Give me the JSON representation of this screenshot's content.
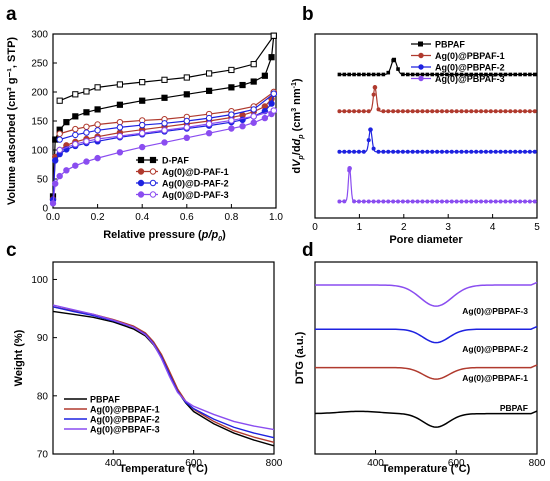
{
  "chart_data": [
    {
      "panel": "a",
      "type": "line",
      "xlabel_main": "Relative pressure (",
      "xlabel_var": "p/p",
      "xlabel_sub": "0",
      "xlabel_end": ")",
      "ylabel": "Volume adsorbed (cm³ g⁻¹, STP)",
      "xlim": [
        0.0,
        1.0
      ],
      "ylim": [
        0,
        300
      ],
      "xticks": [
        "0.0",
        "0.2",
        "0.4",
        "0.6",
        "0.8",
        "1.0"
      ],
      "yticks": [
        "0",
        "50",
        "100",
        "150",
        "200",
        "250",
        "300"
      ],
      "legend_position": "center-right",
      "series": [
        {
          "name": "D-PAF",
          "color": "#000000",
          "x": [
            0.0,
            0.01,
            0.03,
            0.06,
            0.1,
            0.15,
            0.2,
            0.3,
            0.4,
            0.5,
            0.6,
            0.7,
            0.8,
            0.85,
            0.9,
            0.95,
            0.98,
            0.99
          ],
          "ads": [
            20,
            118,
            135,
            148,
            158,
            165,
            170,
            178,
            185,
            190,
            196,
            202,
            208,
            212,
            218,
            228,
            260,
            297
          ],
          "des": [
            185,
            196,
            201,
            208,
            213,
            217,
            221,
            225,
            232,
            238,
            248,
            297
          ],
          "des_x": [
            0.03,
            0.1,
            0.15,
            0.2,
            0.3,
            0.4,
            0.5,
            0.6,
            0.7,
            0.8,
            0.9,
            0.99
          ]
        },
        {
          "name": "Ag(0)@D-PAF-1",
          "color": "#b03a2e",
          "x": [
            0.0,
            0.01,
            0.03,
            0.06,
            0.1,
            0.15,
            0.2,
            0.3,
            0.4,
            0.5,
            0.6,
            0.7,
            0.8,
            0.85,
            0.9,
            0.95,
            0.98,
            0.99
          ],
          "ads": [
            15,
            88,
            100,
            108,
            114,
            119,
            123,
            130,
            135,
            140,
            145,
            150,
            156,
            160,
            166,
            175,
            188,
            200
          ],
          "des": [
            128,
            136,
            140,
            144,
            148,
            151,
            153,
            157,
            162,
            167,
            175,
            200
          ],
          "des_x": [
            0.03,
            0.1,
            0.15,
            0.2,
            0.3,
            0.4,
            0.5,
            0.6,
            0.7,
            0.8,
            0.9,
            0.99
          ]
        },
        {
          "name": "Ag(0)@D-PAF-2",
          "color": "#1e22e0",
          "x": [
            0.0,
            0.01,
            0.03,
            0.06,
            0.1,
            0.15,
            0.2,
            0.3,
            0.4,
            0.5,
            0.6,
            0.7,
            0.8,
            0.85,
            0.9,
            0.95,
            0.98,
            0.99
          ],
          "ads": [
            14,
            82,
            93,
            101,
            107,
            112,
            115,
            122,
            127,
            132,
            137,
            142,
            148,
            152,
            158,
            167,
            180,
            197
          ],
          "des": [
            118,
            126,
            130,
            134,
            139,
            143,
            146,
            150,
            155,
            161,
            170,
            197
          ],
          "des_x": [
            0.03,
            0.1,
            0.15,
            0.2,
            0.3,
            0.4,
            0.5,
            0.6,
            0.7,
            0.8,
            0.9,
            0.99
          ]
        },
        {
          "name": "Ag(0)@D-PAF-3",
          "color": "#8a4df0",
          "x": [
            0.0,
            0.01,
            0.03,
            0.06,
            0.1,
            0.15,
            0.2,
            0.3,
            0.4,
            0.5,
            0.6,
            0.7,
            0.8,
            0.85,
            0.9,
            0.95,
            0.98,
            0.99
          ],
          "ads": [
            8,
            42,
            55,
            65,
            73,
            80,
            86,
            96,
            105,
            113,
            121,
            129,
            137,
            141,
            147,
            155,
            162,
            168
          ],
          "des": [
            100,
            110,
            115,
            119,
            124,
            129,
            134,
            139,
            145,
            151,
            158,
            168
          ],
          "des_x": [
            0.03,
            0.1,
            0.15,
            0.2,
            0.3,
            0.4,
            0.5,
            0.6,
            0.7,
            0.8,
            0.9,
            0.99
          ]
        }
      ]
    },
    {
      "panel": "b",
      "type": "line",
      "xlabel": "Pore diameter",
      "ylabel_parts": [
        "d",
        "V",
        "p",
        "/d",
        "d",
        "p",
        " (cm",
        "3",
        " nm",
        "-1",
        ")"
      ],
      "xlim": [
        0,
        5
      ],
      "xticks": [
        "0",
        "1",
        "2",
        "3",
        "4",
        "5"
      ],
      "legend_position": "top-right",
      "series": [
        {
          "name": "PBPAF",
          "color": "#000000",
          "baseline": 0.78,
          "peak_x": 1.78,
          "peak_h": 0.08,
          "peak_w": 0.09
        },
        {
          "name": "Ag(0)@PBPAF-1",
          "color": "#b03a2e",
          "baseline": 0.58,
          "peak_x": 1.35,
          "peak_h": 0.13,
          "peak_w": 0.05
        },
        {
          "name": "Ag(0)@PBPAF-2",
          "color": "#1e22e0",
          "baseline": 0.36,
          "peak_x": 1.25,
          "peak_h": 0.12,
          "peak_w": 0.05
        },
        {
          "name": "Ag(0)@PBPAF-3",
          "color": "#8a4df0",
          "baseline": 0.09,
          "peak_x": 0.78,
          "peak_h": 0.18,
          "peak_w": 0.04
        }
      ]
    },
    {
      "panel": "c",
      "type": "line",
      "xlabel": "Temperature (°C)",
      "ylabel": "Weight (%)",
      "xlim": [
        250,
        800
      ],
      "ylim": [
        70,
        103
      ],
      "xticks": [
        "400",
        "600",
        "800"
      ],
      "yticks": [
        "70",
        "80",
        "90",
        "100"
      ],
      "legend_position": "bottom-left",
      "x": [
        250,
        300,
        350,
        400,
        450,
        480,
        500,
        520,
        540,
        560,
        580,
        600,
        650,
        700,
        750,
        800
      ],
      "series": [
        {
          "name": "PBPAF",
          "color": "#000000",
          "values": [
            94.5,
            94.0,
            93.5,
            92.7,
            91.5,
            90.3,
            88.8,
            86.6,
            83.8,
            80.8,
            78.8,
            77.3,
            75.2,
            73.6,
            72.4,
            71.4
          ]
        },
        {
          "name": "Ag(0)@PBPAF-1",
          "color": "#b03a2e",
          "values": [
            95.3,
            94.6,
            94.0,
            93.1,
            92.0,
            90.8,
            89.3,
            87.1,
            84.2,
            81.2,
            79.1,
            77.7,
            75.6,
            74.0,
            72.9,
            72.0
          ]
        },
        {
          "name": "Ag(0)@PBPAF-2",
          "color": "#1e22e0",
          "values": [
            95.3,
            94.5,
            93.8,
            92.9,
            91.8,
            90.6,
            89.0,
            86.7,
            83.7,
            80.8,
            78.9,
            77.8,
            76.0,
            74.6,
            73.6,
            72.8
          ]
        },
        {
          "name": "Ag(0)@PBPAF-3",
          "color": "#8a4df0",
          "values": [
            95.6,
            94.8,
            94.0,
            93.0,
            91.8,
            90.5,
            88.9,
            86.4,
            83.3,
            80.6,
            79.1,
            78.2,
            76.8,
            75.6,
            74.8,
            74.2
          ]
        }
      ]
    },
    {
      "panel": "d",
      "type": "line",
      "xlabel": "Temperature (°C)",
      "ylabel": "DTG (a.u.)",
      "xlim": [
        250,
        800
      ],
      "xticks": [
        "400",
        "600",
        "800"
      ],
      "series": [
        {
          "name": "Ag(0)@PBPAF-3",
          "label": "Ag(0)@PBPAF-3",
          "color": "#8a4df0",
          "baseline": 0.88,
          "dip_x": 550,
          "dip_depth": 0.11,
          "dip_w": 55
        },
        {
          "name": "Ag(0)@PBPAF-2",
          "label": "Ag(0)@PBPAF-2",
          "color": "#1e22e0",
          "baseline": 0.65,
          "dip_x": 550,
          "dip_depth": 0.07,
          "dip_w": 45
        },
        {
          "name": "Ag(0)@PBPAF-1",
          "label": "Ag(0)@PBPAF-1",
          "color": "#b03a2e",
          "baseline": 0.45,
          "dip_x": 550,
          "dip_depth": 0.06,
          "dip_w": 45
        },
        {
          "name": "PBPAF",
          "label": "PBPAF",
          "color": "#000000",
          "baseline": 0.21,
          "dip_x": 550,
          "dip_depth": 0.07,
          "dip_w": 45
        }
      ]
    }
  ]
}
